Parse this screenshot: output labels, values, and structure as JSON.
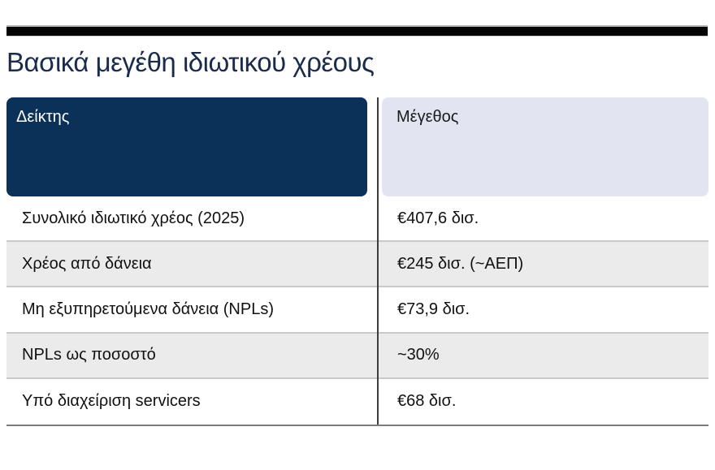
{
  "title": "Βασικά μεγέθη ιδιωτικού χρέους",
  "table": {
    "columns": [
      {
        "label": "Δείκτης"
      },
      {
        "label": "Μέγεθος"
      }
    ],
    "rows": [
      {
        "label": "Συνολικό ιδιωτικό χρέος (2025)",
        "value": "€407,6 δισ."
      },
      {
        "label": "Χρέος από δάνεια",
        "value": "€245 δισ. (~ΑΕΠ)"
      },
      {
        "label": "Μη εξυπηρετούμενα δάνεια (NPLs)",
        "value": "€73,9 δισ."
      },
      {
        "label": "NPLs ως ποσοστό",
        "value": "~30%"
      },
      {
        "label": "Υπό διαχείριση servicers",
        "value": "€68 δισ."
      }
    ]
  },
  "chart_data": {
    "type": "table",
    "title": "Βασικά μεγέθη ιδιωτικού χρέους",
    "columns": [
      "Δείκτης",
      "Μέγεθος"
    ],
    "rows": [
      [
        "Συνολικό ιδιωτικό χρέος (2025)",
        "€407,6 δισ."
      ],
      [
        "Χρέος από δάνεια",
        "€245 δισ. (~ΑΕΠ)"
      ],
      [
        "Μη εξυπηρετούμενα δάνεια (NPLs)",
        "€73,9 δισ."
      ],
      [
        "NPLs ως ποσοστό",
        "~30%"
      ],
      [
        "Υπό διαχείριση servicers",
        "€68 δισ."
      ]
    ]
  },
  "colors": {
    "header_dark_bg": "#0c3158",
    "header_light_bg": "#e2e4f2",
    "row_alt_bg": "#ebebeb",
    "title_text": "#1a2b4c",
    "body_text": "#111111",
    "vertical_divider": "#3d3d3d",
    "row_separator": "#c9c9c9",
    "table_bottom_border": "#7d7d7d",
    "top_rule": "#050505"
  }
}
